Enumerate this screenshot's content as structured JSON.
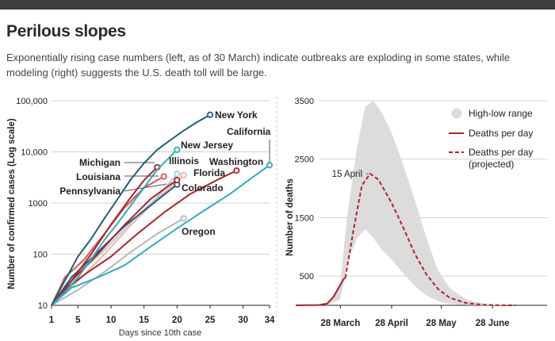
{
  "header": {
    "title": "Perilous slopes",
    "subtitle": "Exponentially rising case numbers (left, as of 30 March) indicate outbreaks are exploding in some states, while modeling (right) suggests the U.S. death toll will be large."
  },
  "colors": {
    "topbar": "#3d3d3d",
    "new_york": "#1f5f7a",
    "new_jersey": "#2ab0b8",
    "california": "#2ab0b8",
    "washington": "#b0222a",
    "michigan": "#b0222a",
    "louisiana": "#d9534f",
    "pennsylvania": "#b0222a",
    "illinois": "#a7cde0",
    "florida": "#f0b59a",
    "colorado": "#1f5f7a",
    "oregon": "#b8b8b8",
    "deaths": "#b0222a",
    "range": "#dcdcdc"
  },
  "chart_data": [
    {
      "type": "line",
      "ylabel": "Number of confirmed cases (Log scale)",
      "xlabel": "Days since 10th case",
      "yscale": "log",
      "ylim": [
        10,
        100000
      ],
      "xlim": [
        1,
        34
      ],
      "y_ticks": [
        "10",
        "100",
        "1000",
        "10,000",
        "100,000"
      ],
      "x_ticks": [
        "1",
        "5",
        "10",
        "15",
        "20",
        "25",
        "30",
        "34"
      ],
      "grid": true,
      "series": [
        {
          "name": "New York",
          "color_key": "new_york",
          "x": [
            1,
            3,
            5,
            7,
            9,
            11,
            13,
            15,
            17,
            19,
            21,
            23,
            25
          ],
          "y": [
            10,
            30,
            90,
            200,
            500,
            1200,
            2900,
            6000,
            11000,
            17000,
            26000,
            38000,
            53000
          ]
        },
        {
          "name": "New Jersey",
          "color_key": "new_jersey",
          "x": [
            1,
            3,
            5,
            7,
            9,
            11,
            13,
            15,
            17,
            20
          ],
          "y": [
            10,
            18,
            35,
            80,
            190,
            400,
            900,
            2000,
            4500,
            11000
          ]
        },
        {
          "name": "California",
          "color_key": "california",
          "x": [
            1,
            4,
            8,
            12,
            16,
            20,
            24,
            28,
            31,
            34
          ],
          "y": [
            10,
            22,
            35,
            60,
            140,
            320,
            700,
            1500,
            2900,
            5500
          ]
        },
        {
          "name": "Washington",
          "color_key": "washington",
          "x": [
            1,
            3,
            6,
            10,
            14,
            18,
            22,
            26,
            29
          ],
          "y": [
            10,
            20,
            40,
            90,
            250,
            650,
            1500,
            2800,
            4300
          ]
        },
        {
          "name": "Michigan",
          "color_key": "michigan",
          "x": [
            1,
            4,
            7,
            10,
            13,
            15,
            17
          ],
          "y": [
            10,
            30,
            100,
            380,
            1300,
            2800,
            5000
          ]
        },
        {
          "name": "Louisiana",
          "color_key": "louisiana",
          "x": [
            1,
            3,
            6,
            9,
            12,
            15,
            18
          ],
          "y": [
            10,
            35,
            80,
            250,
            800,
            2000,
            3300
          ]
        },
        {
          "name": "Pennsylvania",
          "color_key": "pennsylvania",
          "x": [
            1,
            4,
            8,
            12,
            16,
            19,
            20
          ],
          "y": [
            10,
            30,
            100,
            370,
            1200,
            2300,
            2800
          ]
        },
        {
          "name": "Illinois",
          "color_key": "illinois",
          "x": [
            1,
            5,
            9,
            13,
            17,
            20
          ],
          "y": [
            10,
            40,
            120,
            420,
            1300,
            3700
          ]
        },
        {
          "name": "Florida",
          "color_key": "florida",
          "x": [
            1,
            5,
            9,
            13,
            17,
            21
          ],
          "y": [
            10,
            30,
            100,
            370,
            1200,
            3500
          ]
        },
        {
          "name": "Colorado",
          "color_key": "colorado",
          "x": [
            1,
            4,
            8,
            12,
            16,
            20
          ],
          "y": [
            10,
            35,
            110,
            350,
            900,
            2300
          ]
        },
        {
          "name": "Oregon",
          "color_key": "oregon",
          "x": [
            1,
            5,
            9,
            13,
            17,
            21
          ],
          "y": [
            10,
            20,
            45,
            110,
            250,
            500
          ]
        }
      ]
    },
    {
      "type": "area",
      "ylabel": "Number of deaths",
      "ylim": [
        0,
        3500
      ],
      "y_ticks": [
        "3500",
        "2500",
        "1500",
        "500"
      ],
      "x_ticks": [
        "28 March",
        "28 April",
        "28 May",
        "28 June"
      ],
      "grid": true,
      "legend": [
        "High-low range",
        "Deaths per day",
        "Deaths per day (projected)"
      ],
      "legend_position": "top-right",
      "annotation": "15 April",
      "range": {
        "x": [
          "2020-03-01",
          "2020-03-20",
          "2020-03-28",
          "2020-04-01",
          "2020-04-07",
          "2020-04-12",
          "2020-04-17",
          "2020-04-22",
          "2020-04-28",
          "2020-05-05",
          "2020-05-12",
          "2020-05-19",
          "2020-05-26",
          "2020-06-02",
          "2020-06-12",
          "2020-06-22",
          "2020-07-02",
          "2020-07-12",
          "2020-07-31"
        ],
        "low": [
          0,
          5,
          100,
          700,
          1150,
          1300,
          1150,
          950,
          780,
          550,
          330,
          170,
          70,
          25,
          5,
          0,
          0,
          0,
          0
        ],
        "high": [
          0,
          5,
          400,
          1500,
          2700,
          3400,
          3500,
          3300,
          2950,
          2400,
          1800,
          1150,
          600,
          300,
          100,
          30,
          5,
          0,
          0
        ]
      },
      "deaths_observed": {
        "x": [
          "2020-03-01",
          "2020-03-15",
          "2020-03-20",
          "2020-03-24",
          "2020-03-28",
          "2020-03-30",
          "2020-03-31"
        ],
        "y": [
          0,
          5,
          30,
          150,
          350,
          450,
          470
        ]
      },
      "deaths_projected": {
        "x": [
          "2020-03-31",
          "2020-04-05",
          "2020-04-10",
          "2020-04-15",
          "2020-04-20",
          "2020-04-28",
          "2020-05-05",
          "2020-05-12",
          "2020-05-19",
          "2020-05-26",
          "2020-06-02",
          "2020-06-12",
          "2020-06-22",
          "2020-07-02",
          "2020-07-12"
        ],
        "y": [
          470,
          1300,
          2050,
          2250,
          2150,
          1750,
          1330,
          880,
          530,
          280,
          130,
          40,
          10,
          2,
          0
        ]
      }
    }
  ]
}
